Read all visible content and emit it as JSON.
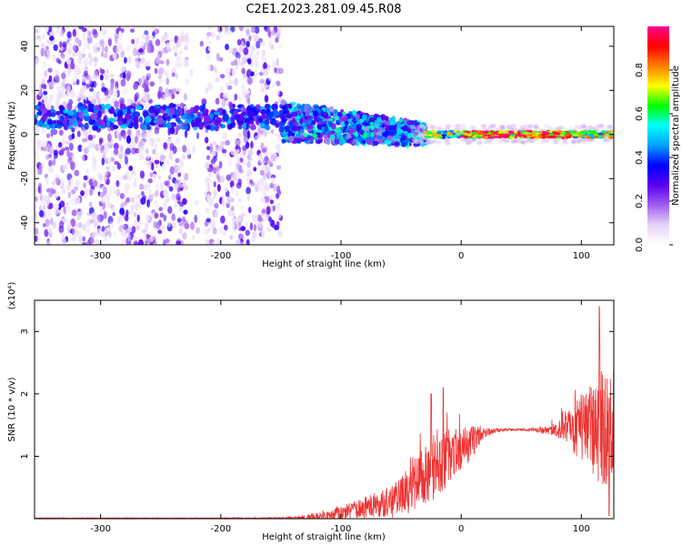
{
  "figure": {
    "title": "C2E1.2023.281.09.45.R08"
  },
  "chart_data": [
    {
      "type": "heatmap",
      "xlabel": "Height of straight line (km)",
      "ylabel": "Frequency (Hz)",
      "xlim": [
        -355,
        127
      ],
      "ylim": [
        -50,
        49
      ],
      "x_ticks": [
        -300,
        -200,
        -100,
        0,
        100
      ],
      "y_ticks": [
        -40,
        -20,
        0,
        20,
        40
      ],
      "colorbar": {
        "label": "Normalized spectral amplitude",
        "range": [
          0,
          1
        ],
        "ticks": [
          0.0,
          0.2,
          0.4,
          0.6,
          0.8
        ],
        "colormap": [
          "#ffffff",
          "#e6d4f7",
          "#a05ef0",
          "#5a00f0",
          "#0000ff",
          "#00a0ff",
          "#00ffff",
          "#00ff00",
          "#ffff00",
          "#ff8000",
          "#ff0000",
          "#ff0090"
        ]
      },
      "regions": [
        {
          "x": [
            -355,
            -150
          ],
          "y": [
            -50,
            49
          ],
          "level": 0.3,
          "description": "broadband scattered noise"
        },
        {
          "x": [
            -150,
            -30
          ],
          "y": [
            -15,
            15
          ],
          "level": 0.45,
          "description": "echo band descending toward 0 Hz"
        },
        {
          "x": [
            -30,
            127
          ],
          "y": [
            -3,
            3
          ],
          "level": 0.85,
          "description": "narrow strong echo near 0 Hz"
        }
      ]
    },
    {
      "type": "line",
      "xlabel": "Height of straight line (km)",
      "ylabel": "SNR (10 * v/v)",
      "y_multiplier": "(x10⁴)",
      "xlim": [
        -355,
        127
      ],
      "ylim": [
        0,
        3.5
      ],
      "x_ticks": [
        -300,
        -200,
        -100,
        0,
        100
      ],
      "y_ticks": [
        1,
        2,
        3
      ],
      "series_color": "#ee3333",
      "envelope": {
        "x": [
          -355,
          -200,
          -150,
          -130,
          -110,
          -100,
          -90,
          -80,
          -70,
          -60,
          -50,
          -40,
          -30,
          -20,
          -10,
          0,
          10,
          20,
          30,
          40,
          50,
          60,
          70,
          80,
          90,
          100,
          110,
          115,
          120,
          125
        ],
        "y_mean": [
          0.01,
          0.01,
          0.01,
          0.02,
          0.05,
          0.1,
          0.13,
          0.18,
          0.22,
          0.26,
          0.35,
          0.55,
          0.7,
          0.9,
          1.0,
          1.1,
          1.25,
          1.38,
          1.42,
          1.43,
          1.43,
          1.42,
          1.42,
          1.43,
          1.44,
          1.45,
          1.45,
          1.45,
          1.45,
          1.45
        ],
        "y_spread": [
          0.005,
          0.005,
          0.01,
          0.04,
          0.08,
          0.12,
          0.14,
          0.18,
          0.2,
          0.25,
          0.35,
          0.45,
          0.5,
          0.55,
          0.45,
          0.35,
          0.25,
          0.08,
          0.03,
          0.02,
          0.02,
          0.03,
          0.06,
          0.12,
          0.3,
          0.55,
          0.75,
          0.9,
          1.0,
          1.0
        ]
      },
      "peaks": [
        {
          "x": -25,
          "y": 2.0
        },
        {
          "x": -15,
          "y": 2.1
        },
        {
          "x": 115,
          "y": 3.4
        },
        {
          "x": 123,
          "y": 0.05
        }
      ]
    }
  ]
}
